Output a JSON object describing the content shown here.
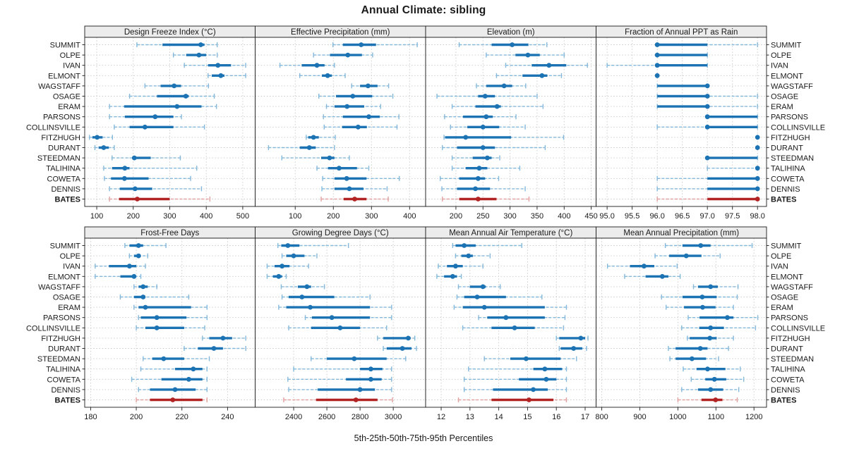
{
  "title": "Annual Climate: sibling",
  "caption": "5th-25th-50th-75th-95th Percentiles",
  "chart_data": {
    "type": "trellis-percentile-dotplot",
    "title": "Annual Climate: sibling",
    "caption": "5th-25th-50th-75th-95th Percentiles",
    "percentile_labels": [
      "5th",
      "25th",
      "50th",
      "75th",
      "95th"
    ],
    "grid": "dotted",
    "layout": {
      "rows": 2,
      "cols": 4
    },
    "sites": [
      "SUMMIT",
      "OLPE",
      "IVAN",
      "ELMONT",
      "WAGSTAFF",
      "OSAGE",
      "ERAM",
      "PARSONS",
      "COLLINSVILLE",
      "FITZHUGH",
      "DURANT",
      "STEEDMAN",
      "TALIHINA",
      "COWETA",
      "DENNIS",
      "BATES"
    ],
    "highlight_site": "BATES",
    "colors": {
      "series": "#1c73b4",
      "series_light": "#85b9db",
      "highlight": "#b22423",
      "highlight_light": "#e2a2a1",
      "grid": "#c9c9c9",
      "strip_bg": "#ececec",
      "frame": "#1a1a1a"
    },
    "panels": [
      {
        "title": "Design Freeze Index (°C)",
        "row": 0,
        "col": 0,
        "xlim": [
          67,
          534
        ],
        "ticks": [
          100,
          200,
          300,
          400,
          500
        ],
        "tick_labels": [
          "100",
          "200",
          "300",
          "400",
          "500"
        ],
        "values": [
          [
            210,
            280,
            385,
            395,
            430
          ],
          [
            310,
            345,
            380,
            400,
            430
          ],
          [
            340,
            405,
            432,
            468,
            508
          ],
          [
            405,
            415,
            440,
            450,
            508
          ],
          [
            232,
            275,
            312,
            331,
            406
          ],
          [
            190,
            265,
            344,
            352,
            422
          ],
          [
            135,
            175,
            320,
            387,
            428
          ],
          [
            135,
            177,
            260,
            310,
            332
          ],
          [
            148,
            190,
            232,
            310,
            395
          ],
          [
            80,
            88,
            101,
            116,
            143
          ],
          [
            95,
            105,
            119,
            133,
            148
          ],
          [
            142,
            197,
            203,
            248,
            329
          ],
          [
            119,
            142,
            177,
            190,
            374
          ],
          [
            121,
            139,
            176,
            242,
            357
          ],
          [
            135,
            163,
            205,
            252,
            387
          ],
          [
            135,
            161,
            211,
            300,
            410
          ]
        ]
      },
      {
        "title": "Effective Precipitation (mm)",
        "row": 0,
        "col": 1,
        "xlim": [
          -5,
          442
        ],
        "ticks": [
          100,
          200,
          300,
          400
        ],
        "tick_labels": [
          "100",
          "200",
          "300",
          "400"
        ],
        "values": [
          [
            199,
            225,
            273,
            312,
            420
          ],
          [
            148,
            191,
            238,
            275,
            303
          ],
          [
            60,
            117,
            157,
            177,
            203
          ],
          [
            112,
            170,
            185,
            196,
            231
          ],
          [
            248,
            270,
            291,
            316,
            345
          ],
          [
            162,
            207,
            251,
            302,
            356
          ],
          [
            182,
            203,
            236,
            281,
            324
          ],
          [
            174,
            225,
            293,
            322,
            372
          ],
          [
            176,
            223,
            265,
            288,
            367
          ],
          [
            129,
            134,
            148,
            162,
            205
          ],
          [
            30,
            112,
            137,
            154,
            203
          ],
          [
            65,
            168,
            190,
            203,
            242
          ],
          [
            157,
            186,
            215,
            262,
            293
          ],
          [
            172,
            203,
            235,
            287,
            373
          ],
          [
            170,
            203,
            242,
            279,
            341
          ],
          [
            168,
            227,
            256,
            287,
            344
          ]
        ]
      },
      {
        "title": "Elevation (m)",
        "row": 0,
        "col": 2,
        "xlim": [
          144,
          459
        ],
        "ticks": [
          200,
          250,
          300,
          350,
          400,
          450
        ],
        "tick_labels": [
          "200",
          "250",
          "300",
          "350",
          "400",
          "450"
        ],
        "values": [
          [
            206,
            266,
            304,
            334,
            368
          ],
          [
            256,
            310,
            333,
            355,
            400
          ],
          [
            292,
            340,
            372,
            404,
            443
          ],
          [
            275,
            323,
            359,
            369,
            395
          ],
          [
            238,
            256,
            289,
            304,
            329
          ],
          [
            165,
            241,
            254,
            272,
            350
          ],
          [
            193,
            236,
            276,
            283,
            361
          ],
          [
            179,
            213,
            256,
            268,
            311
          ],
          [
            190,
            221,
            250,
            280,
            328
          ],
          [
            178,
            180,
            218,
            302,
            399
          ],
          [
            175,
            202,
            250,
            272,
            365
          ],
          [
            193,
            231,
            258,
            266,
            281
          ],
          [
            193,
            218,
            243,
            258,
            318
          ],
          [
            171,
            206,
            241,
            254,
            279
          ],
          [
            174,
            202,
            236,
            263,
            328
          ],
          [
            175,
            206,
            241,
            275,
            335
          ]
        ]
      },
      {
        "title": "Fraction of Annual PPT as Rain",
        "row": 0,
        "col": 3,
        "xlim": [
          94.78,
          98.18
        ],
        "ticks": [
          95.0,
          95.5,
          96.0,
          96.5,
          97.0,
          97.5,
          98.0
        ],
        "tick_labels": [
          "95.0",
          "95.5",
          "96.0",
          "96.5",
          "97.0",
          "97.5",
          "98.0"
        ],
        "values": [
          [
            96,
            96,
            96,
            97,
            98
          ],
          [
            96,
            96,
            96,
            97,
            97
          ],
          [
            95,
            96,
            96,
            97,
            97
          ],
          [
            96,
            96,
            96,
            96,
            96
          ],
          [
            96,
            96,
            97,
            97,
            97
          ],
          [
            96,
            96,
            97,
            97,
            98
          ],
          [
            96,
            96,
            97,
            97,
            98
          ],
          [
            97,
            97,
            97,
            98,
            98
          ],
          [
            96,
            97,
            97,
            98,
            98
          ],
          [
            98,
            98,
            98,
            98,
            98
          ],
          [
            98,
            98,
            98,
            98,
            98
          ],
          [
            97,
            97,
            97,
            98,
            98
          ],
          [
            97,
            98,
            98,
            98,
            98
          ],
          [
            96,
            97,
            98,
            98,
            98
          ],
          [
            96,
            97,
            98,
            98,
            98
          ],
          [
            96,
            97,
            98,
            98,
            98
          ]
        ]
      },
      {
        "title": "Frost-Free Days",
        "row": 1,
        "col": 0,
        "xlim": [
          177.4,
          252.1
        ],
        "ticks": [
          180,
          200,
          220,
          240
        ],
        "tick_labels": [
          "180",
          "200",
          "220",
          "240"
        ],
        "values": [
          [
            195,
            197,
            201,
            203,
            213
          ],
          [
            197,
            199,
            201,
            202,
            205
          ],
          [
            182,
            188,
            197,
            200,
            204
          ],
          [
            182,
            193,
            199,
            200,
            202
          ],
          [
            199,
            201,
            203,
            205,
            209
          ],
          [
            193,
            199,
            203,
            204,
            223
          ],
          [
            199,
            201,
            204,
            224,
            231
          ],
          [
            201,
            202,
            209,
            222,
            231
          ],
          [
            200,
            204,
            209,
            221,
            230
          ],
          [
            229,
            232,
            238,
            242,
            248
          ],
          [
            221,
            227,
            234,
            238,
            248
          ],
          [
            203,
            207,
            212,
            221,
            232
          ],
          [
            202,
            217,
            225,
            229,
            231
          ],
          [
            198,
            211,
            223,
            229,
            231
          ],
          [
            201,
            206,
            217,
            226,
            231
          ],
          [
            200,
            206,
            216,
            229,
            231
          ]
        ]
      },
      {
        "title": "Growing Degree Days (°C)",
        "row": 1,
        "col": 1,
        "xlim": [
          2168,
          3195
        ],
        "ticks": [
          2400,
          2600,
          2800,
          3000
        ],
        "tick_labels": [
          "2400",
          "2600",
          "2800",
          "3000"
        ],
        "values": [
          [
            2305,
            2325,
            2365,
            2435,
            2730
          ],
          [
            2330,
            2355,
            2400,
            2465,
            2540
          ],
          [
            2240,
            2285,
            2330,
            2375,
            2490
          ],
          [
            2240,
            2275,
            2310,
            2330,
            2355
          ],
          [
            2325,
            2425,
            2480,
            2505,
            2585
          ],
          [
            2330,
            2370,
            2450,
            2645,
            2860
          ],
          [
            2310,
            2355,
            2500,
            2860,
            2990
          ],
          [
            2470,
            2510,
            2630,
            2860,
            2990
          ],
          [
            2370,
            2505,
            2680,
            2800,
            2960
          ],
          [
            2905,
            2940,
            3090,
            3105,
            3130
          ],
          [
            2940,
            2960,
            3055,
            3110,
            3140
          ],
          [
            2505,
            2600,
            2765,
            2960,
            3075
          ],
          [
            2400,
            2800,
            2865,
            2935,
            2990
          ],
          [
            2365,
            2715,
            2865,
            2930,
            2990
          ],
          [
            2370,
            2545,
            2800,
            2890,
            2990
          ],
          [
            2340,
            2535,
            2775,
            2905,
            2995
          ]
        ]
      },
      {
        "title": "Mean Annual Air Temperature (°C)",
        "row": 1,
        "col": 2,
        "xlim": [
          11.46,
          17.38
        ],
        "ticks": [
          12,
          13,
          14,
          15,
          16,
          17
        ],
        "tick_labels": [
          "12",
          "13",
          "14",
          "15",
          "16",
          "17"
        ],
        "values": [
          [
            12.4,
            12.5,
            12.8,
            13.2,
            14.8
          ],
          [
            12.5,
            12.7,
            12.95,
            13.1,
            13.7
          ],
          [
            11.9,
            12.2,
            12.5,
            12.75,
            13.45
          ],
          [
            11.85,
            12.1,
            12.4,
            12.55,
            12.7
          ],
          [
            12.6,
            13.0,
            13.45,
            13.55,
            14.05
          ],
          [
            12.55,
            12.8,
            13.25,
            14.25,
            15.5
          ],
          [
            12.45,
            12.75,
            13.5,
            15.6,
            16.35
          ],
          [
            13.3,
            13.6,
            14.25,
            15.6,
            16.3
          ],
          [
            12.75,
            13.75,
            14.55,
            15.25,
            16.25
          ],
          [
            16.0,
            16.1,
            16.85,
            17.0,
            17.1
          ],
          [
            16.1,
            16.15,
            16.6,
            16.9,
            17.05
          ],
          [
            13.5,
            14.4,
            14.95,
            16.15,
            16.7
          ],
          [
            12.95,
            15.2,
            15.6,
            16.2,
            16.35
          ],
          [
            12.8,
            14.7,
            15.65,
            16.0,
            16.35
          ],
          [
            12.8,
            13.8,
            15.2,
            15.7,
            16.35
          ],
          [
            12.6,
            13.75,
            15.05,
            15.9,
            16.35
          ]
        ]
      },
      {
        "title": "Mean Annual Precipitation (mm)",
        "row": 1,
        "col": 3,
        "xlim": [
          785,
          1233
        ],
        "ticks": [
          800,
          900,
          1000,
          1100,
          1200
        ],
        "tick_labels": [
          "800",
          "900",
          "1000",
          "1100",
          "1200"
        ],
        "values": [
          [
            967,
            1012,
            1060,
            1086,
            1195
          ],
          [
            940,
            977,
            1022,
            1062,
            1111
          ],
          [
            815,
            874,
            911,
            938,
            998
          ],
          [
            860,
            915,
            959,
            975,
            1006
          ],
          [
            1041,
            1053,
            1086,
            1105,
            1158
          ],
          [
            957,
            1012,
            1064,
            1102,
            1156
          ],
          [
            969,
            1016,
            1065,
            1099,
            1146
          ],
          [
            1027,
            1057,
            1130,
            1146,
            1210
          ],
          [
            1010,
            1056,
            1086,
            1121,
            1204
          ],
          [
            1025,
            1031,
            1084,
            1102,
            1146
          ],
          [
            975,
            994,
            1059,
            1078,
            1133
          ],
          [
            979,
            994,
            1037,
            1074,
            1107
          ],
          [
            1014,
            1049,
            1078,
            1125,
            1164
          ],
          [
            1035,
            1072,
            1096,
            1127,
            1173
          ],
          [
            1010,
            1053,
            1086,
            1119,
            1160
          ],
          [
            1000,
            1062,
            1099,
            1117,
            1156
          ]
        ]
      }
    ]
  }
}
